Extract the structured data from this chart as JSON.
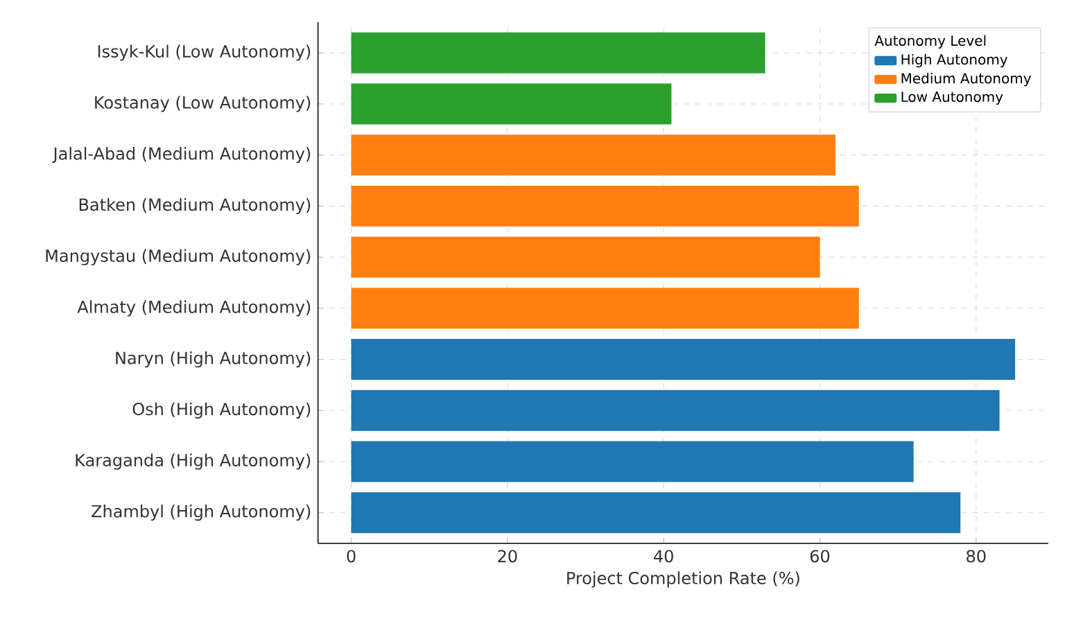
{
  "chart_data": {
    "type": "bar",
    "orientation": "horizontal",
    "xlabel": "Project Completion Rate (%)",
    "legend_title": "Autonomy Level",
    "categories": [
      "Issyk-Kul (Low Autonomy)",
      "Kostanay (Low Autonomy)",
      "Jalal-Abad (Medium Autonomy)",
      "Batken (Medium Autonomy)",
      "Mangystau (Medium Autonomy)",
      "Almaty (Medium Autonomy)",
      "Naryn (High Autonomy)",
      "Osh (High Autonomy)",
      "Karaganda (High Autonomy)",
      "Zhambyl (High Autonomy)"
    ],
    "series": [
      {
        "name": "High Autonomy",
        "color": "#1f77b4",
        "values": [
          null,
          null,
          null,
          null,
          null,
          null,
          85,
          83,
          72,
          78
        ]
      },
      {
        "name": "Medium Autonomy",
        "color": "#ff7f0e",
        "values": [
          null,
          null,
          62,
          65,
          60,
          65,
          null,
          null,
          null,
          null
        ]
      },
      {
        "name": "Low Autonomy",
        "color": "#2ca02c",
        "values": [
          53,
          41,
          null,
          null,
          null,
          null,
          null,
          null,
          null,
          null
        ]
      }
    ],
    "xlim": [
      -4.25,
      89.25
    ],
    "xticks": [
      0,
      20,
      40,
      60,
      80
    ],
    "grid": true,
    "legend": "top right"
  }
}
